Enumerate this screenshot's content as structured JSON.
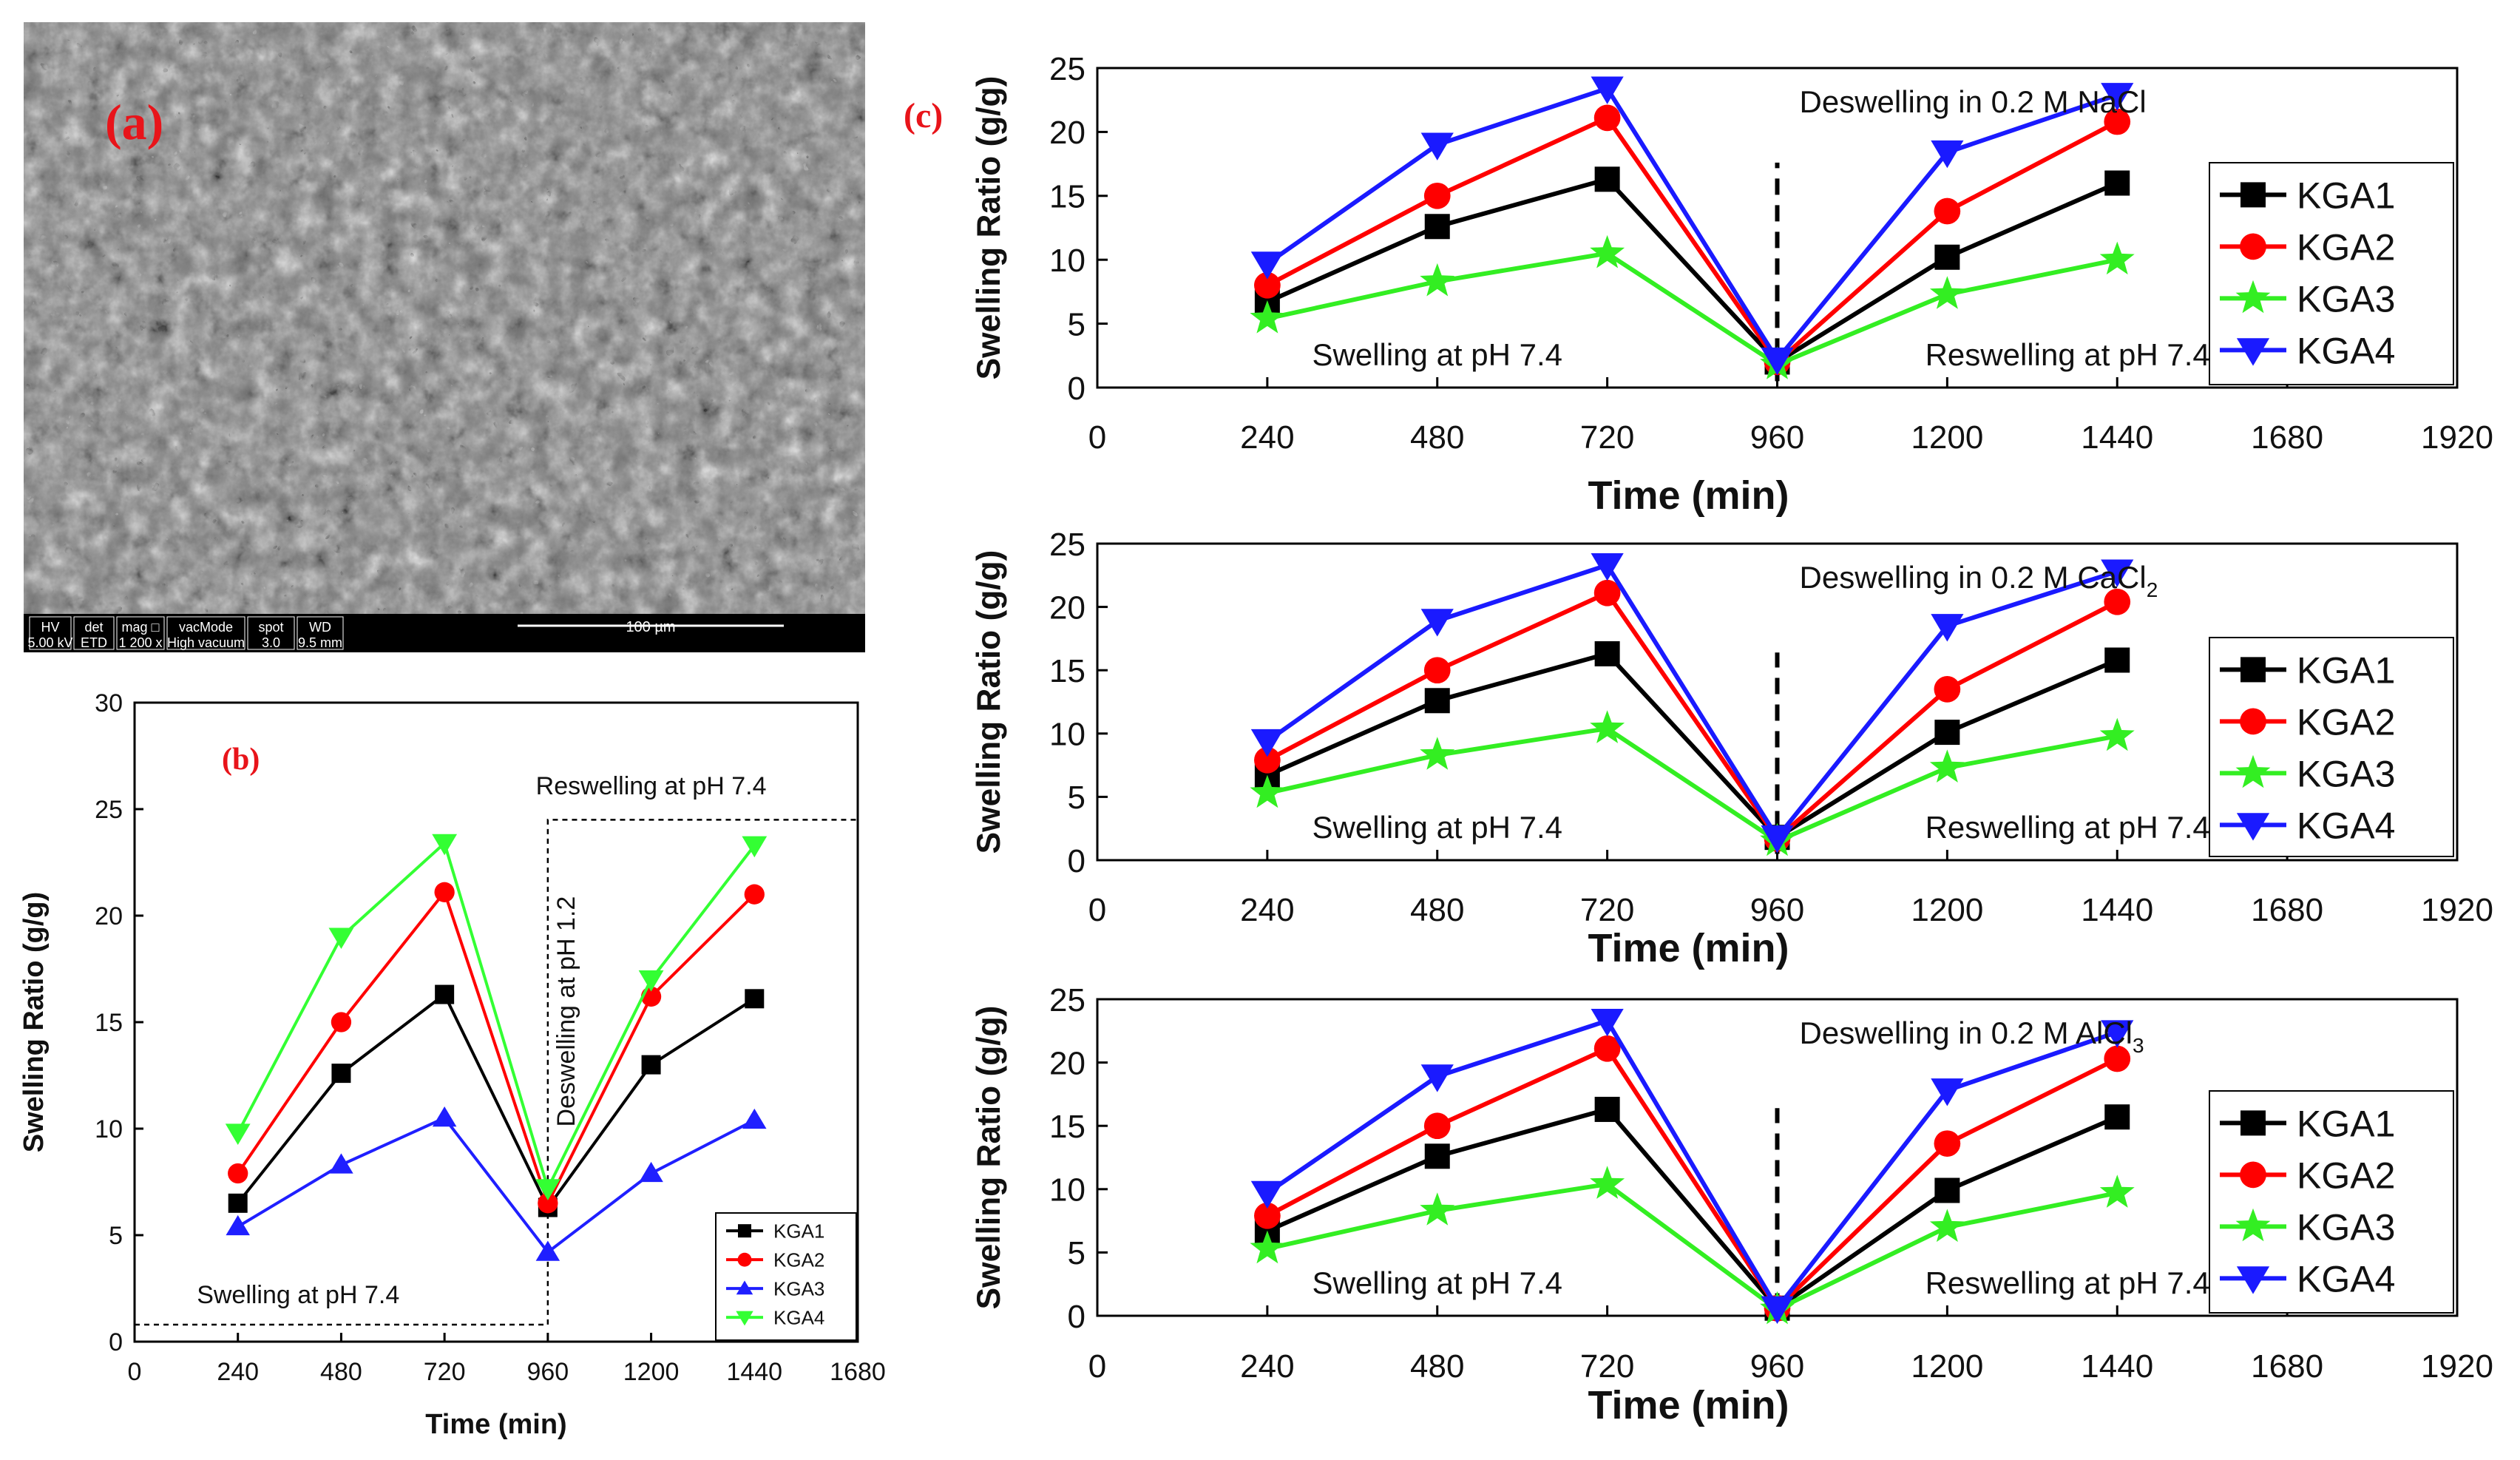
{
  "panel_labels": {
    "a": "(a)",
    "b": "(b)",
    "c": "(c)"
  },
  "sem": {
    "info_headers": [
      "HV",
      "det",
      "mag □",
      "vacMode",
      "spot",
      "WD"
    ],
    "info_values": [
      "5.00 kV",
      "ETD",
      "1 200 x",
      "High vacuum",
      "3.0",
      "9.5 mm"
    ],
    "scale_label": "100 µm"
  },
  "colors": {
    "KGA1": "#000000",
    "KGA2": "#ff0000",
    "KGA3b": "#1f1fff",
    "KGA4b": "#33ff33",
    "KGA3c": "#33ee22",
    "KGA4c": "#1a1aff"
  },
  "chart_data": [
    {
      "id": "b",
      "type": "line",
      "xlabel": "Time (min)",
      "ylabel": "Swelling Ratio (g/g)",
      "xlim": [
        0,
        1680
      ],
      "ylim": [
        0,
        30
      ],
      "xticks": [
        "0",
        "240",
        "480",
        "720",
        "960",
        "1200",
        "1440",
        "1680"
      ],
      "yticks": [
        "0",
        "5",
        "10",
        "15",
        "20",
        "25",
        "30"
      ],
      "x": [
        240,
        480,
        720,
        960,
        1200,
        1440
      ],
      "series": [
        {
          "name": "KGA1",
          "marker": "square",
          "color": "#000000",
          "values": [
            6.5,
            12.6,
            16.3,
            6.3,
            13.0,
            16.1
          ]
        },
        {
          "name": "KGA2",
          "marker": "circle",
          "color": "#ff0000",
          "values": [
            7.9,
            15.0,
            21.1,
            6.5,
            16.2,
            21.0
          ]
        },
        {
          "name": "KGA3",
          "marker": "triangle-up",
          "color": "#1f1fff",
          "values": [
            5.4,
            8.3,
            10.5,
            4.2,
            7.9,
            10.4
          ]
        },
        {
          "name": "KGA4",
          "marker": "triangle-down",
          "color": "#33ff33",
          "values": [
            9.8,
            19.0,
            23.4,
            7.2,
            17.0,
            23.3
          ]
        }
      ],
      "annotations": {
        "swelling": "Swelling at pH 7.4",
        "deswelling": "Deswelling at pH 1.2",
        "reswelling": "Reswelling at pH 7.4"
      }
    },
    {
      "id": "c1",
      "type": "line",
      "xlabel": "Time (min)",
      "ylabel": "Swelling Ratio (g/g)",
      "xlim": [
        0,
        1920
      ],
      "ylim": [
        0,
        25
      ],
      "xticks": [
        "0",
        "240",
        "480",
        "720",
        "960",
        "1200",
        "1440",
        "1680",
        "1920"
      ],
      "yticks": [
        "0",
        "5",
        "10",
        "15",
        "20",
        "25"
      ],
      "x": [
        240,
        480,
        720,
        960,
        1200,
        1440
      ],
      "series": [
        {
          "name": "KGA1",
          "marker": "square",
          "color": "#000000",
          "values": [
            6.7,
            12.6,
            16.3,
            2.0,
            10.2,
            16.0
          ]
        },
        {
          "name": "KGA2",
          "marker": "circle",
          "color": "#ff0000",
          "values": [
            8.0,
            15.0,
            21.1,
            2.0,
            13.8,
            20.8
          ]
        },
        {
          "name": "KGA3",
          "marker": "star",
          "color": "#33ee22",
          "values": [
            5.4,
            8.3,
            10.5,
            1.8,
            7.3,
            10.0
          ]
        },
        {
          "name": "KGA4",
          "marker": "triangle-down",
          "color": "#1a1aff",
          "values": [
            9.7,
            19.0,
            23.4,
            2.2,
            18.4,
            22.9
          ]
        }
      ],
      "annotations": {
        "deswelling_pre": "Deswelling in 0.2 M NaCl",
        "deswelling_sub": "",
        "swelling": "Swelling at pH 7.4",
        "reswelling": "Reswelling at pH 7.4"
      }
    },
    {
      "id": "c2",
      "type": "line",
      "xlabel": "Time (min)",
      "ylabel": "Swelling Ratio (g/g)",
      "xlim": [
        0,
        1920
      ],
      "ylim": [
        0,
        25
      ],
      "xticks": [
        "0",
        "240",
        "480",
        "720",
        "960",
        "1200",
        "1440",
        "1680",
        "1920"
      ],
      "yticks": [
        "0",
        "5",
        "10",
        "15",
        "20",
        "25"
      ],
      "x": [
        240,
        480,
        720,
        960,
        1200,
        1440
      ],
      "series": [
        {
          "name": "KGA1",
          "marker": "square",
          "color": "#000000",
          "values": [
            6.7,
            12.6,
            16.3,
            1.8,
            10.1,
            15.8
          ]
        },
        {
          "name": "KGA2",
          "marker": "circle",
          "color": "#ff0000",
          "values": [
            7.9,
            15.0,
            21.1,
            1.7,
            13.5,
            20.4
          ]
        },
        {
          "name": "KGA3",
          "marker": "star",
          "color": "#33ee22",
          "values": [
            5.3,
            8.3,
            10.4,
            1.5,
            7.3,
            9.8
          ]
        },
        {
          "name": "KGA4",
          "marker": "triangle-down",
          "color": "#1a1aff",
          "values": [
            9.4,
            18.9,
            23.3,
            1.8,
            18.5,
            22.8
          ]
        }
      ],
      "annotations": {
        "deswelling_pre": "Deswelling in 0.2 M CaCl",
        "deswelling_sub": "2",
        "swelling": "Swelling at pH 7.4",
        "reswelling": "Reswelling at pH 7.4"
      }
    },
    {
      "id": "c3",
      "type": "line",
      "xlabel": "Time (min)",
      "ylabel": "Swelling Ratio (g/g)",
      "xlim": [
        0,
        1920
      ],
      "ylim": [
        0,
        25
      ],
      "xticks": [
        "0",
        "240",
        "480",
        "720",
        "960",
        "1200",
        "1440",
        "1680",
        "1920"
      ],
      "yticks": [
        "0",
        "5",
        "10",
        "15",
        "20",
        "25"
      ],
      "x": [
        240,
        480,
        720,
        960,
        1200,
        1440
      ],
      "series": [
        {
          "name": "KGA1",
          "marker": "square",
          "color": "#000000",
          "values": [
            6.7,
            12.6,
            16.3,
            0.6,
            9.9,
            15.7
          ]
        },
        {
          "name": "KGA2",
          "marker": "circle",
          "color": "#ff0000",
          "values": [
            7.9,
            15.0,
            21.1,
            0.6,
            13.6,
            20.3
          ]
        },
        {
          "name": "KGA3",
          "marker": "star",
          "color": "#33ee22",
          "values": [
            5.3,
            8.3,
            10.4,
            0.5,
            7.0,
            9.7
          ]
        },
        {
          "name": "KGA4",
          "marker": "triangle-down",
          "color": "#1a1aff",
          "values": [
            9.7,
            18.9,
            23.3,
            0.6,
            17.8,
            22.4
          ]
        }
      ],
      "annotations": {
        "deswelling_pre": "Deswelling in 0.2 M AlCl",
        "deswelling_sub": "3",
        "swelling": "Swelling at pH 7.4",
        "reswelling": "Reswelling at pH 7.4"
      }
    }
  ]
}
